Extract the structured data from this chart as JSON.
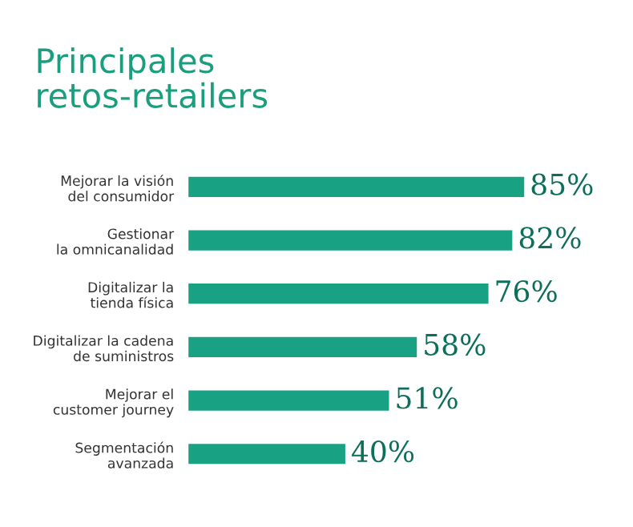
{
  "chart_data": {
    "type": "bar",
    "orientation": "horizontal",
    "title": "Principales\nretos-retailers",
    "categories": [
      "Mejorar la visión\ndel consumidor",
      "Gestionar\nla omnicanalidad",
      "Digitalizar la\ntienda física",
      "Digitalizar la cadena\nde suministros",
      "Mejorar el\ncustomer journey",
      "Segmentación\navanzada"
    ],
    "values": [
      85,
      82,
      76,
      58,
      51,
      40
    ],
    "color": "#18a183",
    "data_labels": true,
    "value_labels": [
      "85%",
      "82%",
      "76%",
      "58%",
      "51%",
      "40%"
    ],
    "grid": false,
    "legend": false
  }
}
